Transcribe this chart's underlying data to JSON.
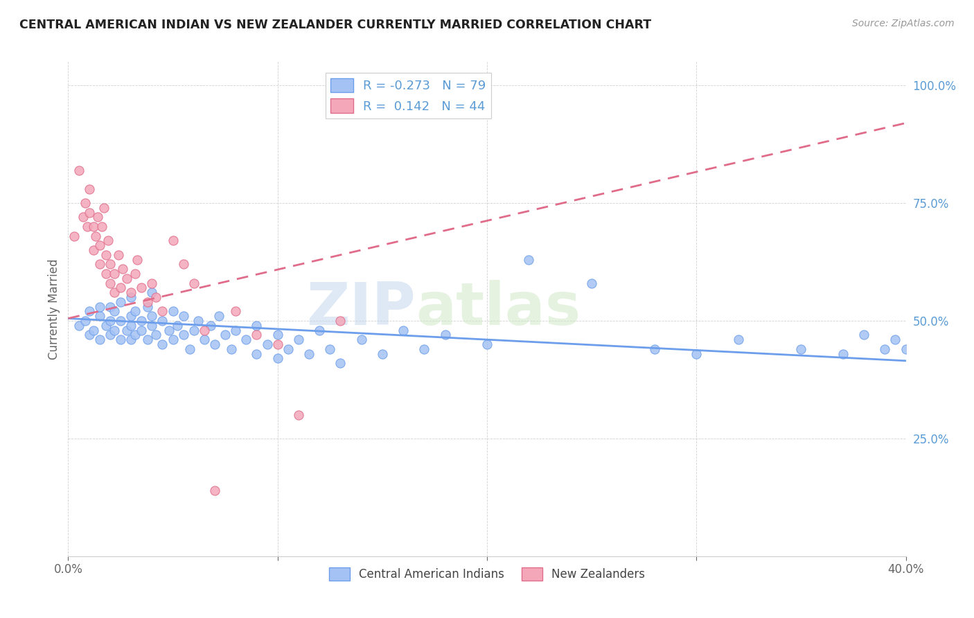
{
  "title": "CENTRAL AMERICAN INDIAN VS NEW ZEALANDER CURRENTLY MARRIED CORRELATION CHART",
  "source": "Source: ZipAtlas.com",
  "ylabel": "Currently Married",
  "xlim": [
    0.0,
    0.4
  ],
  "ylim": [
    0.0,
    1.05
  ],
  "yticks": [
    0.25,
    0.5,
    0.75,
    1.0
  ],
  "ytick_labels": [
    "25.0%",
    "50.0%",
    "75.0%",
    "100.0%"
  ],
  "xticks": [
    0.0,
    0.1,
    0.2,
    0.3,
    0.4
  ],
  "xtick_labels": [
    "0.0%",
    "",
    "",
    "",
    "40.0%"
  ],
  "blue_R": -0.273,
  "blue_N": 79,
  "pink_R": 0.142,
  "pink_N": 44,
  "blue_color": "#a4c2f4",
  "pink_color": "#f4a7b9",
  "blue_edge_color": "#6d9eeb",
  "pink_edge_color": "#e06c8a",
  "blue_line_color": "#6d9eeb",
  "pink_line_color": "#e06c8a",
  "background_color": "#ffffff",
  "watermark1": "ZIP",
  "watermark2": "atlas",
  "legend_label_blue": "Central American Indians",
  "legend_label_pink": "New Zealanders",
  "blue_scatter_x": [
    0.005,
    0.008,
    0.01,
    0.01,
    0.012,
    0.015,
    0.015,
    0.015,
    0.018,
    0.02,
    0.02,
    0.02,
    0.022,
    0.022,
    0.025,
    0.025,
    0.025,
    0.028,
    0.03,
    0.03,
    0.03,
    0.03,
    0.032,
    0.032,
    0.035,
    0.035,
    0.038,
    0.038,
    0.04,
    0.04,
    0.04,
    0.042,
    0.045,
    0.045,
    0.048,
    0.05,
    0.05,
    0.052,
    0.055,
    0.055,
    0.058,
    0.06,
    0.062,
    0.065,
    0.068,
    0.07,
    0.072,
    0.075,
    0.078,
    0.08,
    0.085,
    0.09,
    0.09,
    0.095,
    0.1,
    0.1,
    0.105,
    0.11,
    0.115,
    0.12,
    0.125,
    0.13,
    0.14,
    0.15,
    0.16,
    0.17,
    0.18,
    0.2,
    0.22,
    0.25,
    0.28,
    0.3,
    0.32,
    0.35,
    0.37,
    0.38,
    0.39,
    0.395,
    0.4
  ],
  "blue_scatter_y": [
    0.49,
    0.5,
    0.47,
    0.52,
    0.48,
    0.51,
    0.46,
    0.53,
    0.49,
    0.5,
    0.47,
    0.53,
    0.48,
    0.52,
    0.46,
    0.5,
    0.54,
    0.48,
    0.49,
    0.51,
    0.46,
    0.55,
    0.47,
    0.52,
    0.48,
    0.5,
    0.46,
    0.53,
    0.49,
    0.51,
    0.56,
    0.47,
    0.5,
    0.45,
    0.48,
    0.52,
    0.46,
    0.49,
    0.47,
    0.51,
    0.44,
    0.48,
    0.5,
    0.46,
    0.49,
    0.45,
    0.51,
    0.47,
    0.44,
    0.48,
    0.46,
    0.43,
    0.49,
    0.45,
    0.42,
    0.47,
    0.44,
    0.46,
    0.43,
    0.48,
    0.44,
    0.41,
    0.46,
    0.43,
    0.48,
    0.44,
    0.47,
    0.45,
    0.63,
    0.58,
    0.44,
    0.43,
    0.46,
    0.44,
    0.43,
    0.47,
    0.44,
    0.46,
    0.44
  ],
  "pink_scatter_x": [
    0.003,
    0.005,
    0.007,
    0.008,
    0.009,
    0.01,
    0.01,
    0.012,
    0.012,
    0.013,
    0.014,
    0.015,
    0.015,
    0.016,
    0.017,
    0.018,
    0.018,
    0.019,
    0.02,
    0.02,
    0.022,
    0.022,
    0.024,
    0.025,
    0.026,
    0.028,
    0.03,
    0.032,
    0.033,
    0.035,
    0.038,
    0.04,
    0.042,
    0.045,
    0.05,
    0.055,
    0.06,
    0.065,
    0.07,
    0.08,
    0.09,
    0.1,
    0.11,
    0.13
  ],
  "pink_scatter_y": [
    0.68,
    0.82,
    0.72,
    0.75,
    0.7,
    0.73,
    0.78,
    0.65,
    0.7,
    0.68,
    0.72,
    0.62,
    0.66,
    0.7,
    0.74,
    0.6,
    0.64,
    0.67,
    0.58,
    0.62,
    0.56,
    0.6,
    0.64,
    0.57,
    0.61,
    0.59,
    0.56,
    0.6,
    0.63,
    0.57,
    0.54,
    0.58,
    0.55,
    0.52,
    0.67,
    0.62,
    0.58,
    0.48,
    0.14,
    0.52,
    0.47,
    0.45,
    0.3,
    0.5
  ]
}
